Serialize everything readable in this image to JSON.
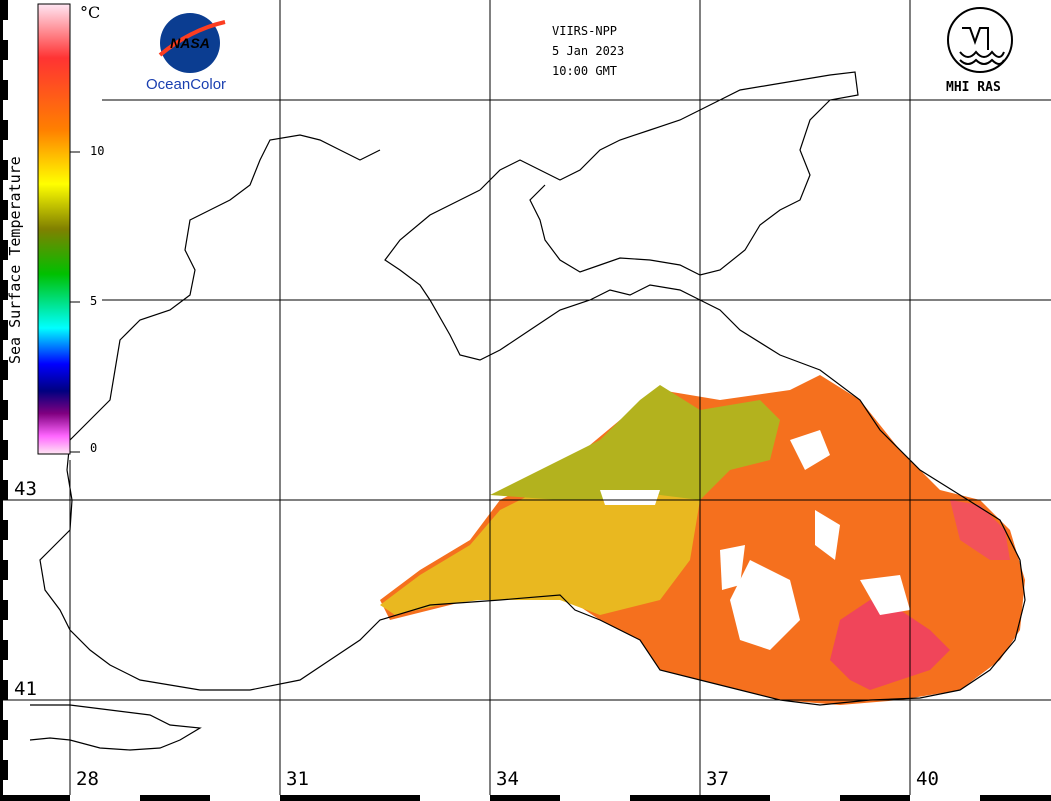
{
  "header": {
    "sensor": "VIIRS-NPP",
    "date": "5 Jan 2023",
    "time": "10:00 GMT"
  },
  "logos": {
    "nasa_text": "NASA",
    "oceancolor_text": "OceanColor",
    "mhi_text": "MHI RAS"
  },
  "colorbar": {
    "title": "Sea Surface Temperature",
    "unit": "°C",
    "ticks": [
      "10",
      "5",
      "0"
    ],
    "colors": [
      "#ffe6f3",
      "#ff66ff",
      "#800080",
      "#000080",
      "#0000ff",
      "#00ffff",
      "#00c000",
      "#808000",
      "#ffff00",
      "#ff8000",
      "#ff3333",
      "#ffe6f3"
    ]
  },
  "grid": {
    "latitudes": [
      "43",
      "41"
    ],
    "longitudes": [
      "28",
      "31",
      "34",
      "37",
      "40"
    ]
  },
  "colors": {
    "sst_orange": "#f5701e",
    "sst_yellow": "#e9b820",
    "sst_olive": "#b3b21e",
    "sst_red": "#f0455a",
    "coastline": "#000000"
  }
}
